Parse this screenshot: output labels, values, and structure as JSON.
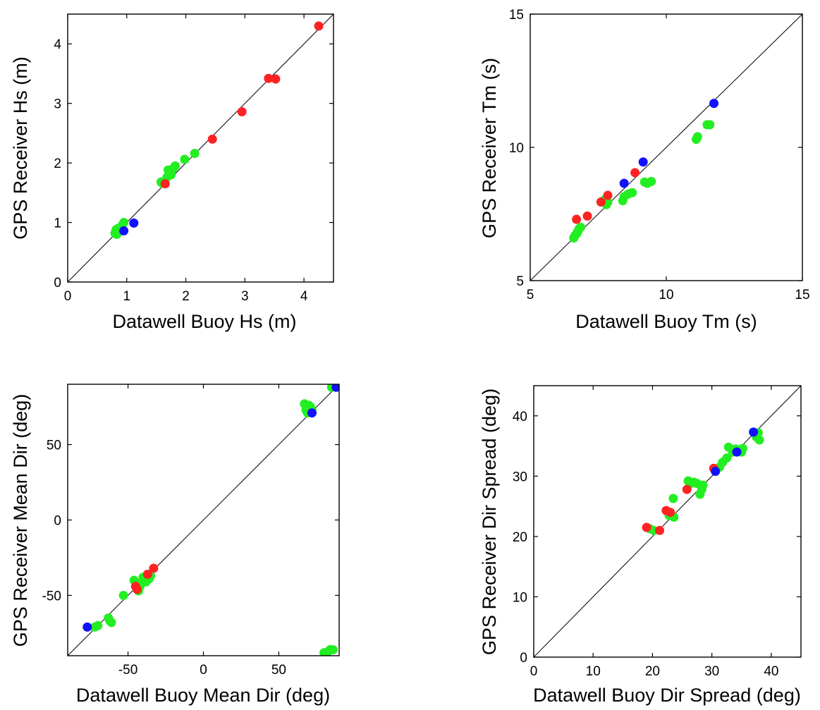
{
  "colors": {
    "red": "#ff2222",
    "green": "#22ee22",
    "blue": "#1111ff",
    "line": "#000000"
  },
  "chart_data": [
    {
      "type": "scatter",
      "xlabel": "Datawell Buoy Hs (m)",
      "ylabel": "GPS Receiver Hs (m)",
      "xlim": [
        0,
        4.5
      ],
      "ylim": [
        0,
        4.5
      ],
      "xticks": [
        "0",
        "1",
        "2",
        "3",
        "4"
      ],
      "xtick_values": [
        0,
        1,
        2,
        3,
        4
      ],
      "yticks": [
        "0",
        "1",
        "2",
        "3",
        "4"
      ],
      "ytick_values": [
        0,
        1,
        2,
        3,
        4
      ],
      "identity_line": true,
      "series": [
        {
          "color": "green",
          "points": [
            [
              0.8,
              0.82
            ],
            [
              0.82,
              0.88
            ],
            [
              0.85,
              0.9
            ],
            [
              0.88,
              0.85
            ],
            [
              0.92,
              0.95
            ],
            [
              0.95,
              1.0
            ],
            [
              0.83,
              0.8
            ],
            [
              1.58,
              1.68
            ],
            [
              1.6,
              1.66
            ],
            [
              1.68,
              1.76
            ],
            [
              1.72,
              1.84
            ],
            [
              1.75,
              1.8
            ],
            [
              1.78,
              1.9
            ],
            [
              1.82,
              1.95
            ],
            [
              1.98,
              2.06
            ],
            [
              2.15,
              2.16
            ],
            [
              1.7,
              1.88
            ]
          ]
        },
        {
          "color": "red",
          "points": [
            [
              1.65,
              1.65
            ],
            [
              2.45,
              2.4
            ],
            [
              2.95,
              2.86
            ],
            [
              3.4,
              3.42
            ],
            [
              3.52,
              3.41
            ],
            [
              4.25,
              4.3
            ]
          ]
        },
        {
          "color": "blue",
          "points": [
            [
              0.95,
              0.86
            ],
            [
              1.12,
              0.99
            ]
          ]
        }
      ]
    },
    {
      "type": "scatter",
      "xlabel": "Datawell Buoy Tm (s)",
      "ylabel": "GPS Receiver Tm (s)",
      "xlim": [
        5,
        15
      ],
      "ylim": [
        5,
        15
      ],
      "xticks": [
        "5",
        "10",
        "15"
      ],
      "xtick_values": [
        5,
        10,
        15
      ],
      "yticks": [
        "5",
        "10",
        "15"
      ],
      "ytick_values": [
        5,
        10,
        15
      ],
      "identity_line": true,
      "series": [
        {
          "color": "green",
          "points": [
            [
              6.6,
              6.6
            ],
            [
              6.65,
              6.7
            ],
            [
              6.7,
              6.75
            ],
            [
              6.75,
              6.85
            ],
            [
              6.8,
              6.95
            ],
            [
              6.85,
              7.0
            ],
            [
              7.7,
              8.0
            ],
            [
              7.75,
              8.05
            ],
            [
              7.8,
              7.85
            ],
            [
              7.85,
              7.95
            ],
            [
              8.4,
              8.0
            ],
            [
              8.45,
              8.15
            ],
            [
              8.6,
              8.25
            ],
            [
              8.75,
              8.3
            ],
            [
              9.2,
              8.7
            ],
            [
              9.3,
              8.65
            ],
            [
              9.45,
              8.72
            ],
            [
              11.1,
              10.3
            ],
            [
              11.15,
              10.4
            ],
            [
              11.5,
              10.85
            ],
            [
              11.6,
              10.85
            ]
          ]
        },
        {
          "color": "red",
          "points": [
            [
              6.7,
              7.3
            ],
            [
              7.1,
              7.42
            ],
            [
              7.6,
              7.95
            ],
            [
              7.85,
              8.2
            ],
            [
              8.85,
              9.05
            ]
          ]
        },
        {
          "color": "blue",
          "points": [
            [
              8.45,
              8.65
            ],
            [
              9.15,
              9.45
            ],
            [
              11.75,
              11.65
            ]
          ]
        }
      ]
    },
    {
      "type": "scatter",
      "xlabel": "Datawell Buoy Mean Dir (deg)",
      "ylabel": "GPS Receiver Mean Dir (deg)",
      "xlim": [
        -90,
        90
      ],
      "ylim": [
        -90,
        90
      ],
      "xticks": [
        "-50",
        "0",
        "50"
      ],
      "xtick_values": [
        -50,
        0,
        50
      ],
      "yticks": [
        "-50",
        "0",
        "50"
      ],
      "ytick_values": [
        -50,
        0,
        50
      ],
      "identity_line": true,
      "series": [
        {
          "color": "green",
          "points": [
            [
              -72,
              -71
            ],
            [
              -70,
              -70
            ],
            [
              -63,
              -65
            ],
            [
              -62,
              -67
            ],
            [
              -61,
              -68
            ],
            [
              -53,
              -50
            ],
            [
              -46,
              -40
            ],
            [
              -44,
              -42
            ],
            [
              -43,
              -47
            ],
            [
              -42,
              -44
            ],
            [
              -40,
              -38
            ],
            [
              -38,
              -41
            ],
            [
              -36,
              -39
            ],
            [
              -35,
              -37
            ],
            [
              67,
              77
            ],
            [
              68,
              73
            ],
            [
              69,
              71
            ],
            [
              70,
              76
            ],
            [
              71,
              75
            ],
            [
              72,
              73
            ],
            [
              85,
              88
            ],
            [
              83,
              -87
            ],
            [
              84,
              -86
            ],
            [
              86,
              -86
            ],
            [
              80,
              -88
            ]
          ]
        },
        {
          "color": "red",
          "points": [
            [
              -45,
              -44
            ],
            [
              -44,
              -46
            ],
            [
              -37,
              -36
            ],
            [
              -33,
              -32
            ]
          ]
        },
        {
          "color": "blue",
          "points": [
            [
              -77,
              -71
            ],
            [
              72,
              71
            ],
            [
              88,
              88
            ]
          ]
        }
      ]
    },
    {
      "type": "scatter",
      "xlabel": "Datawell Buoy Dir Spread (deg)",
      "ylabel": "GPS Receiver Dir Spread (deg)",
      "xlim": [
        0,
        45
      ],
      "ylim": [
        0,
        45
      ],
      "xticks": [
        "0",
        "10",
        "20",
        "30",
        "40"
      ],
      "xtick_values": [
        0,
        10,
        20,
        30,
        40
      ],
      "yticks": [
        "0",
        "10",
        "20",
        "30",
        "40"
      ],
      "ytick_values": [
        0,
        10,
        20,
        30,
        40
      ],
      "identity_line": true,
      "series": [
        {
          "color": "green",
          "points": [
            [
              19.5,
              21.3
            ],
            [
              20.2,
              21.0
            ],
            [
              22.8,
              23.5
            ],
            [
              23.5,
              26.3
            ],
            [
              23.6,
              23.2
            ],
            [
              23.2,
              23.5
            ],
            [
              26.0,
              29.2
            ],
            [
              26.5,
              28.8
            ],
            [
              27.0,
              29.0
            ],
            [
              27.5,
              28.8
            ],
            [
              28.0,
              27.0
            ],
            [
              28.3,
              27.8
            ],
            [
              28.5,
              28.5
            ],
            [
              31.3,
              31.5
            ],
            [
              31.8,
              32.3
            ],
            [
              32.5,
              33.0
            ],
            [
              32.8,
              34.8
            ],
            [
              33.5,
              34.0
            ],
            [
              34.0,
              34.5
            ],
            [
              35.0,
              34.0
            ],
            [
              35.2,
              34.6
            ],
            [
              37.5,
              36.5
            ],
            [
              37.8,
              37.2
            ],
            [
              38.0,
              36.0
            ]
          ]
        },
        {
          "color": "red",
          "points": [
            [
              19.0,
              21.5
            ],
            [
              21.2,
              21.0
            ],
            [
              22.3,
              24.3
            ],
            [
              23.0,
              24.0
            ],
            [
              25.8,
              27.8
            ],
            [
              30.3,
              31.3
            ]
          ]
        },
        {
          "color": "blue",
          "points": [
            [
              30.6,
              30.8
            ],
            [
              34.2,
              34.0
            ],
            [
              37.0,
              37.3
            ]
          ]
        }
      ]
    }
  ]
}
